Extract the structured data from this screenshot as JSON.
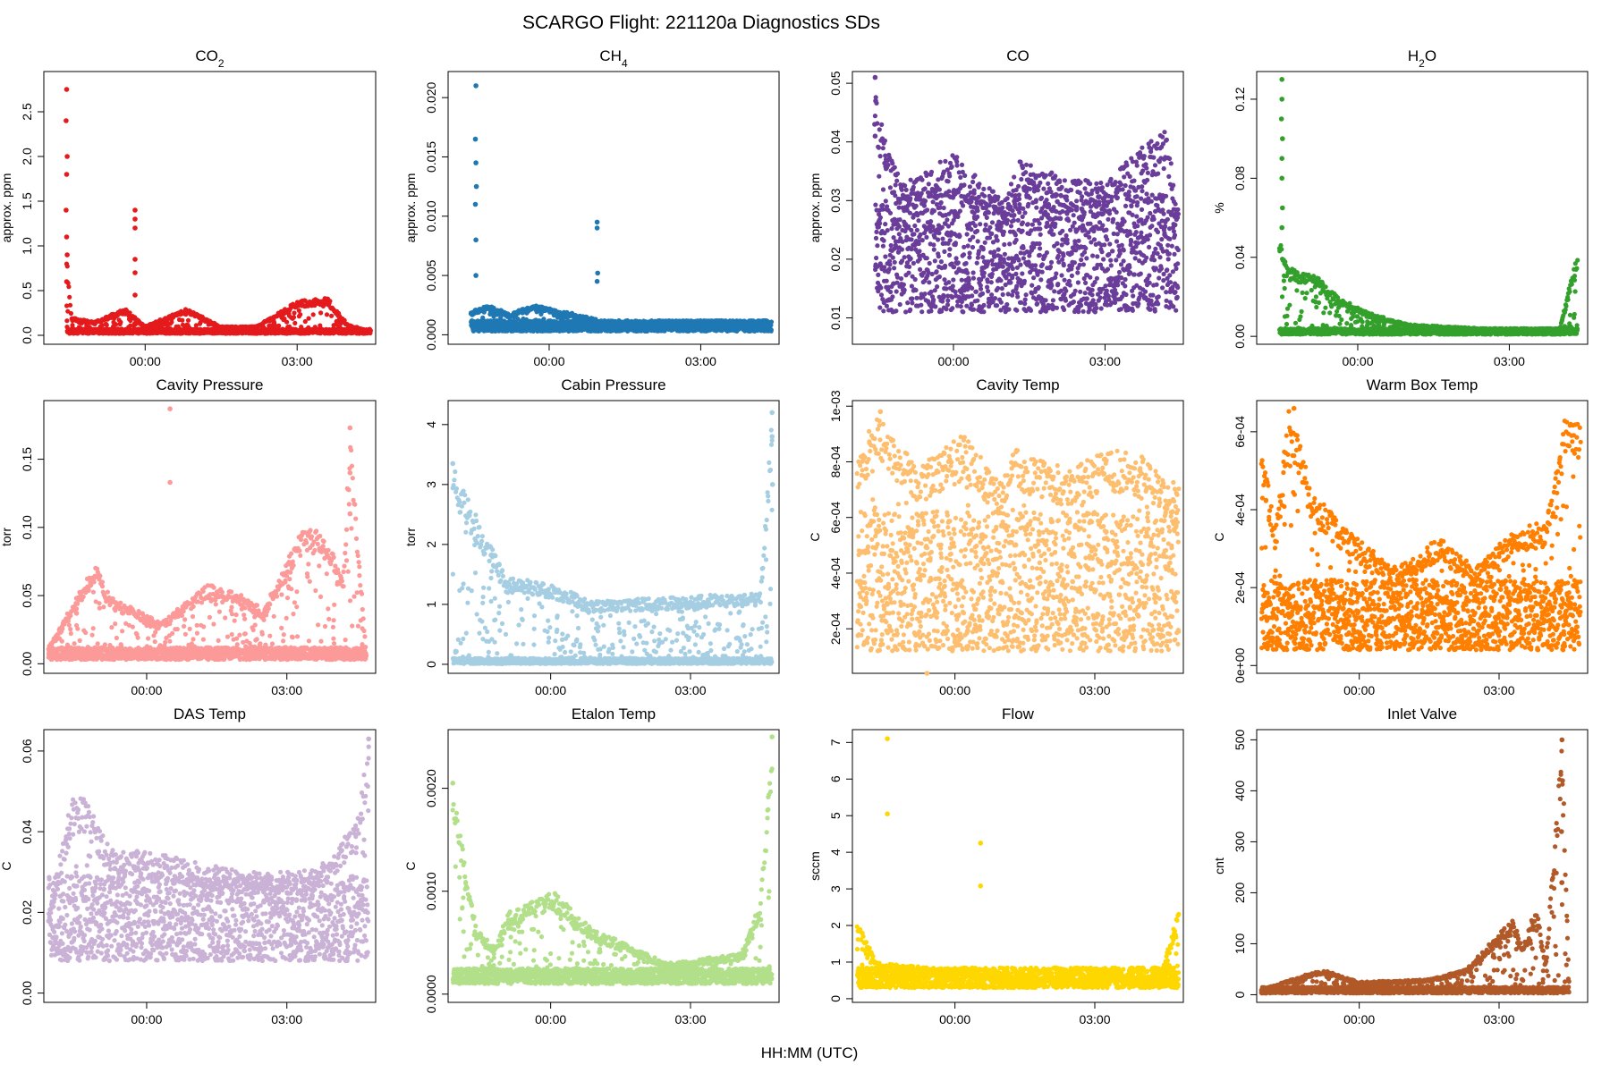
{
  "figure": {
    "title": "SCARGO Flight: 221120a  Diagnostics SDs",
    "xlabel": "HH:MM (UTC)"
  },
  "chart_data": [
    {
      "type": "scatter",
      "title": "CO",
      "title_sub": "2",
      "ylabel": "approx. ppm",
      "color": "#e41a1c",
      "xlim": [
        -2.0,
        4.55
      ],
      "ylim": [
        -0.1,
        2.95
      ],
      "yticks": [
        0.0,
        0.5,
        1.0,
        1.5,
        2.0,
        2.5
      ],
      "ytick_labels": [
        "0.0",
        "0.5",
        "1.0",
        "1.5",
        "2.0",
        "2.5"
      ],
      "xticks": [
        0,
        3
      ],
      "xtick_labels": [
        "00:00",
        "03:00"
      ],
      "band": {
        "lo": 0.02,
        "hi": 0.07
      },
      "trace": [
        [
          -1.55,
          0.9
        ],
        [
          -1.45,
          0.2
        ],
        [
          -1.0,
          0.15
        ],
        [
          -0.4,
          0.3
        ],
        [
          0.0,
          0.1
        ],
        [
          0.8,
          0.3
        ],
        [
          1.5,
          0.1
        ],
        [
          2.2,
          0.1
        ],
        [
          3.0,
          0.38
        ],
        [
          3.6,
          0.42
        ],
        [
          4.0,
          0.12
        ],
        [
          4.45,
          0.05
        ]
      ],
      "spikes": [
        [
          -1.55,
          2.75
        ],
        [
          -1.56,
          2.4
        ],
        [
          -1.54,
          2.0
        ],
        [
          -1.55,
          1.8
        ],
        [
          -1.56,
          1.4
        ],
        [
          -1.55,
          1.1
        ],
        [
          -1.54,
          0.9
        ],
        [
          -1.55,
          0.6
        ],
        [
          -0.2,
          1.4
        ],
        [
          -0.2,
          1.3
        ],
        [
          -0.2,
          1.2
        ],
        [
          -0.2,
          0.85
        ],
        [
          -0.2,
          0.7
        ],
        [
          -0.2,
          0.45
        ]
      ]
    },
    {
      "type": "scatter",
      "title": "CH",
      "title_sub": "4",
      "ylabel": "approx. ppm",
      "color": "#1f78b4",
      "xlim": [
        -2.0,
        4.55
      ],
      "ylim": [
        -0.0008,
        0.0222
      ],
      "yticks": [
        0.0,
        0.005,
        0.01,
        0.015,
        0.02
      ],
      "ytick_labels": [
        "0.000",
        "0.005",
        "0.010",
        "0.015",
        "0.020"
      ],
      "xticks": [
        0,
        3
      ],
      "xtick_labels": [
        "00:00",
        "03:00"
      ],
      "band": {
        "lo": 0.0003,
        "hi": 0.0012
      },
      "trace": [
        [
          -1.55,
          0.002
        ],
        [
          -1.2,
          0.0025
        ],
        [
          -0.8,
          0.0018
        ],
        [
          -0.3,
          0.0025
        ],
        [
          0.5,
          0.0018
        ],
        [
          1.2,
          0.001
        ],
        [
          2.5,
          0.0012
        ],
        [
          4.4,
          0.0012
        ]
      ],
      "spikes": [
        [
          -1.45,
          0.021
        ],
        [
          -1.46,
          0.0165
        ],
        [
          -1.45,
          0.0145
        ],
        [
          -1.44,
          0.0125
        ],
        [
          -1.46,
          0.011
        ],
        [
          -1.45,
          0.008
        ],
        [
          -1.45,
          0.005
        ],
        [
          0.95,
          0.0095
        ],
        [
          0.95,
          0.009
        ],
        [
          0.96,
          0.0052
        ],
        [
          0.95,
          0.0045
        ]
      ]
    },
    {
      "type": "scatter",
      "title": "CO",
      "title_sub": "",
      "ylabel": "approx. ppm",
      "color": "#6a3d9a",
      "xlim": [
        -2.0,
        4.55
      ],
      "ylim": [
        0.0055,
        0.052
      ],
      "yticks": [
        0.01,
        0.02,
        0.03,
        0.04,
        0.05
      ],
      "ytick_labels": [
        "0.01",
        "0.02",
        "0.03",
        "0.04",
        "0.05"
      ],
      "xticks": [
        0,
        3
      ],
      "xtick_labels": [
        "00:00",
        "03:00"
      ],
      "band": {
        "lo": 0.011,
        "hi": 0.031
      },
      "trace": [
        [
          -1.55,
          0.05
        ],
        [
          -1.5,
          0.045
        ],
        [
          -1.0,
          0.033
        ],
        [
          0.0,
          0.038
        ],
        [
          1.0,
          0.03
        ],
        [
          1.3,
          0.037
        ],
        [
          2.2,
          0.034
        ],
        [
          3.0,
          0.033
        ],
        [
          4.2,
          0.043
        ],
        [
          4.45,
          0.028
        ]
      ],
      "spikes": [
        [
          -1.55,
          0.051
        ],
        [
          -1.54,
          0.047
        ],
        [
          -1.56,
          0.043
        ],
        [
          -1.55,
          0.041
        ]
      ]
    },
    {
      "type": "scatter",
      "title": "H",
      "title_sub": "2",
      "title_tail": "O",
      "ylabel": "%",
      "color": "#33a02c",
      "xlim": [
        -2.0,
        4.55
      ],
      "ylim": [
        -0.004,
        0.134
      ],
      "yticks": [
        0.0,
        0.04,
        0.08,
        0.12
      ],
      "ytick_labels": [
        "0.00",
        "0.04",
        "0.08",
        "0.12"
      ],
      "xticks": [
        0,
        3
      ],
      "xtick_labels": [
        "00:00",
        "03:00"
      ],
      "band": {
        "lo": 0.001,
        "hi": 0.004
      },
      "trace": [
        [
          -1.55,
          0.05
        ],
        [
          -1.4,
          0.035
        ],
        [
          -0.8,
          0.03
        ],
        [
          -0.4,
          0.02
        ],
        [
          0.2,
          0.012
        ],
        [
          1.0,
          0.006
        ],
        [
          2.5,
          0.004
        ],
        [
          4.0,
          0.004
        ],
        [
          4.35,
          0.043
        ]
      ],
      "spikes": [
        [
          -1.5,
          0.13
        ],
        [
          -1.5,
          0.12
        ],
        [
          -1.51,
          0.11
        ],
        [
          -1.49,
          0.1
        ],
        [
          -1.5,
          0.09
        ],
        [
          -1.5,
          0.08
        ],
        [
          -1.49,
          0.065
        ],
        [
          -1.5,
          0.055
        ]
      ]
    },
    {
      "type": "scatter",
      "title": "Cavity Pressure",
      "ylabel": "torr",
      "color": "#fb9a99",
      "xlim": [
        -2.2,
        4.9
      ],
      "ylim": [
        -0.007,
        0.193
      ],
      "yticks": [
        0.0,
        0.05,
        0.1,
        0.15
      ],
      "ytick_labels": [
        "0.00",
        "0.05",
        "0.10",
        "0.15"
      ],
      "xticks": [
        0,
        3
      ],
      "xtick_labels": [
        "00:00",
        "03:00"
      ],
      "band": {
        "lo": 0.003,
        "hi": 0.012
      },
      "trace": [
        [
          -2.1,
          0.012
        ],
        [
          -1.1,
          0.073
        ],
        [
          -0.8,
          0.05
        ],
        [
          0.3,
          0.03
        ],
        [
          1.3,
          0.058
        ],
        [
          1.8,
          0.055
        ],
        [
          2.5,
          0.04
        ],
        [
          3.35,
          0.1
        ],
        [
          3.7,
          0.097
        ],
        [
          4.0,
          0.08
        ],
        [
          4.2,
          0.06
        ],
        [
          4.35,
          0.17
        ],
        [
          4.7,
          0.006
        ]
      ],
      "spikes": [
        [
          0.5,
          0.187
        ],
        [
          0.5,
          0.133
        ],
        [
          -1.5,
          0.048
        ],
        [
          -1.5,
          0.037
        ],
        [
          4.35,
          0.173
        ],
        [
          4.35,
          0.14
        ],
        [
          4.35,
          0.11
        ]
      ]
    },
    {
      "type": "scatter",
      "title": "Cabin Pressure",
      "ylabel": "torr",
      "color": "#a6cee3",
      "xlim": [
        -2.2,
        4.9
      ],
      "ylim": [
        -0.15,
        4.4
      ],
      "yticks": [
        0,
        1,
        2,
        3,
        4
      ],
      "ytick_labels": [
        "0",
        "1",
        "2",
        "3",
        "4"
      ],
      "xticks": [
        0,
        3
      ],
      "xtick_labels": [
        "00:00",
        "03:00"
      ],
      "band": {
        "lo": 0.01,
        "hi": 0.1
      },
      "trace": [
        [
          -2.1,
          3.3
        ],
        [
          -0.95,
          1.45
        ],
        [
          0.05,
          1.35
        ],
        [
          0.85,
          1.05
        ],
        [
          4.5,
          1.2
        ],
        [
          4.75,
          4.2
        ]
      ],
      "spikes": [
        [
          -2.1,
          3.35
        ],
        [
          4.75,
          4.2
        ],
        [
          4.75,
          3.8
        ],
        [
          4.76,
          3.0
        ]
      ]
    },
    {
      "type": "scatter",
      "title": "Cavity Temp",
      "ylabel": "C",
      "color": "#fdbf6f",
      "xlim": [
        -2.2,
        4.9
      ],
      "ylim": [
        4e-05,
        0.00102
      ],
      "yticks": [
        0.0002,
        0.0004,
        0.0006,
        0.0008,
        0.001
      ],
      "ytick_labels": [
        "2e-04",
        "4e-04",
        "6e-04",
        "8e-04",
        "1e-03"
      ],
      "xticks": [
        0,
        3
      ],
      "xtick_labels": [
        "00:00",
        "03:00"
      ],
      "band": {
        "lo": 0.00012,
        "hi": 0.00062
      },
      "trace": [
        [
          -2.1,
          0.00085
        ],
        [
          -1.6,
          0.00097
        ],
        [
          -0.8,
          0.00078
        ],
        [
          0.2,
          0.0009
        ],
        [
          1.0,
          0.00073
        ],
        [
          1.3,
          0.00085
        ],
        [
          2.5,
          0.00077
        ],
        [
          3.2,
          0.00085
        ],
        [
          4.0,
          0.00082
        ],
        [
          4.4,
          0.00075
        ],
        [
          4.8,
          0.00072
        ]
      ],
      "spikes": [
        [
          -1.6,
          0.00098
        ],
        [
          -0.6,
          4e-05
        ]
      ]
    },
    {
      "type": "scatter",
      "title": "Warm Box Temp",
      "ylabel": "C",
      "color": "#ff7f00",
      "xlim": [
        -2.2,
        4.9
      ],
      "ylim": [
        -2e-05,
        0.00068
      ],
      "yticks": [
        0.0,
        0.0002,
        0.0004,
        0.0006
      ],
      "ytick_labels": [
        "0e+00",
        "2e-04",
        "4e-04",
        "6e-04"
      ],
      "xticks": [
        0,
        3
      ],
      "xtick_labels": [
        "00:00",
        "03:00"
      ],
      "band": {
        "lo": 4e-05,
        "hi": 0.00022
      },
      "trace": [
        [
          -2.1,
          0.00058
        ],
        [
          -1.8,
          0.00035
        ],
        [
          -1.5,
          0.00067
        ],
        [
          -1.0,
          0.00045
        ],
        [
          -0.3,
          0.00035
        ],
        [
          0.8,
          0.00025
        ],
        [
          1.7,
          0.00033
        ],
        [
          2.5,
          0.00025
        ],
        [
          3.3,
          0.00035
        ],
        [
          4.0,
          0.00037
        ],
        [
          4.4,
          0.00063
        ],
        [
          4.75,
          0.00065
        ]
      ],
      "spikes": [
        [
          -1.4,
          0.00066
        ]
      ]
    },
    {
      "type": "scatter",
      "title": "DAS Temp",
      "ylabel": "C",
      "color": "#cab2d6",
      "xlim": [
        -2.2,
        4.9
      ],
      "ylim": [
        -0.0023,
        0.0653
      ],
      "yticks": [
        0.0,
        0.02,
        0.04,
        0.06
      ],
      "ytick_labels": [
        "0.00",
        "0.02",
        "0.04",
        "0.06"
      ],
      "xticks": [
        0,
        3
      ],
      "xtick_labels": [
        "00:00",
        "03:00"
      ],
      "band": {
        "lo": 0.008,
        "hi": 0.029
      },
      "trace": [
        [
          -2.1,
          0.02
        ],
        [
          -1.6,
          0.049
        ],
        [
          -1.3,
          0.048
        ],
        [
          -0.8,
          0.036
        ],
        [
          0.1,
          0.035
        ],
        [
          1.2,
          0.032
        ],
        [
          2.2,
          0.03
        ],
        [
          3.3,
          0.03
        ],
        [
          3.9,
          0.033
        ],
        [
          4.55,
          0.045
        ],
        [
          4.75,
          0.063
        ]
      ],
      "spikes": [
        [
          4.75,
          0.063
        ]
      ]
    },
    {
      "type": "scatter",
      "title": "Etalon Temp",
      "ylabel": "C",
      "color": "#b2df8a",
      "xlim": [
        -2.2,
        4.9
      ],
      "ylim": [
        -8e-05,
        0.00257
      ],
      "yticks": [
        0.0,
        0.001,
        0.002
      ],
      "ytick_labels": [
        "0.0000",
        "0.0010",
        "0.0020"
      ],
      "xticks": [
        0,
        3
      ],
      "xtick_labels": [
        "00:00",
        "03:00"
      ],
      "band": {
        "lo": 0.0001,
        "hi": 0.00025
      },
      "trace": [
        [
          -2.1,
          0.002
        ],
        [
          -1.6,
          0.00065
        ],
        [
          -1.2,
          0.00045
        ],
        [
          -0.9,
          0.0008
        ],
        [
          0.05,
          0.001
        ],
        [
          0.85,
          0.00065
        ],
        [
          2.5,
          0.0003
        ],
        [
          4.1,
          0.0004
        ],
        [
          4.5,
          0.0009
        ],
        [
          4.75,
          0.0025
        ]
      ],
      "spikes": [
        [
          -2.1,
          0.00205
        ],
        [
          4.75,
          0.0025
        ]
      ]
    },
    {
      "type": "scatter",
      "title": "Flow",
      "ylabel": "sccm",
      "color": "#ffd700",
      "xlim": [
        -2.2,
        4.9
      ],
      "ylim": [
        -0.1,
        7.35
      ],
      "yticks": [
        0,
        1,
        2,
        3,
        4,
        5,
        6,
        7
      ],
      "ytick_labels": [
        "0",
        "1",
        "2",
        "3",
        "4",
        "5",
        "6",
        "7"
      ],
      "xticks": [
        0,
        3
      ],
      "xtick_labels": [
        "00:00",
        "03:00"
      ],
      "band": {
        "lo": 0.3,
        "hi": 0.85
      },
      "trace": [
        [
          -2.1,
          2.2
        ],
        [
          -1.7,
          1.0
        ],
        [
          -1.0,
          0.9
        ],
        [
          0.0,
          0.8
        ],
        [
          1.0,
          0.6
        ],
        [
          2.5,
          0.55
        ],
        [
          4.4,
          0.6
        ],
        [
          4.8,
          2.4
        ]
      ],
      "spikes": [
        [
          -1.45,
          7.1
        ],
        [
          -1.45,
          5.05
        ],
        [
          0.55,
          4.25
        ],
        [
          0.55,
          3.08
        ]
      ]
    },
    {
      "type": "scatter",
      "title": "Inlet Valve",
      "ylabel": "cnt",
      "color": "#b15928",
      "xlim": [
        -2.2,
        4.9
      ],
      "ylim": [
        -15,
        520
      ],
      "yticks": [
        0,
        100,
        200,
        300,
        400,
        500
      ],
      "ytick_labels": [
        "0",
        "100",
        "200",
        "300",
        "400",
        "500"
      ],
      "xticks": [
        0,
        3
      ],
      "xtick_labels": [
        "00:00",
        "03:00"
      ],
      "band": {
        "lo": 3,
        "hi": 15
      },
      "trace": [
        [
          -2.1,
          10
        ],
        [
          -0.8,
          50
        ],
        [
          0.0,
          25
        ],
        [
          1.5,
          30
        ],
        [
          2.3,
          50
        ],
        [
          3.3,
          150
        ],
        [
          3.5,
          90
        ],
        [
          3.8,
          175
        ],
        [
          4.0,
          60
        ],
        [
          4.35,
          500
        ],
        [
          4.5,
          30
        ]
      ],
      "spikes": [
        [
          4.35,
          500
        ],
        [
          4.36,
          420
        ],
        [
          4.34,
          320
        ],
        [
          4.35,
          220
        ]
      ]
    }
  ]
}
